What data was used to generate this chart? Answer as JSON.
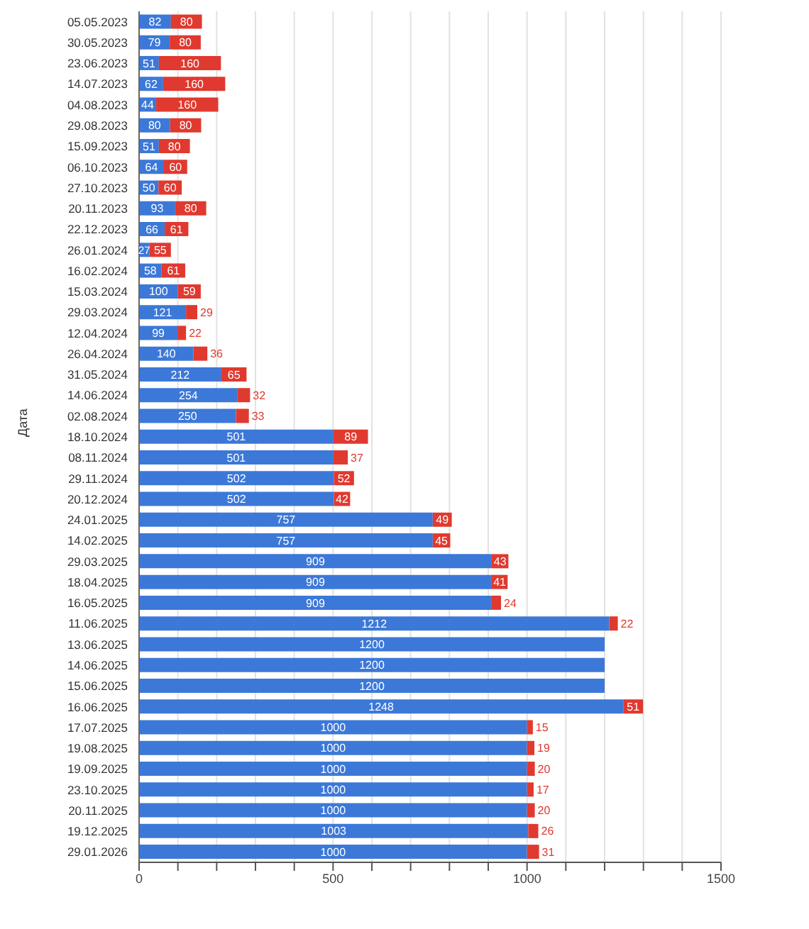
{
  "chart_data": {
    "type": "bar",
    "orientation": "horizontal",
    "stacked": true,
    "ylabel": "Дата",
    "data_labels": true,
    "grid": "x",
    "categories": [
      "05.05.2023",
      "30.05.2023",
      "23.06.2023",
      "14.07.2023",
      "04.08.2023",
      "29.08.2023",
      "15.09.2023",
      "06.10.2023",
      "27.10.2023",
      "20.11.2023",
      "22.12.2023",
      "26.01.2024",
      "16.02.2024",
      "15.03.2024",
      "29.03.2024",
      "12.04.2024",
      "26.04.2024",
      "31.05.2024",
      "14.06.2024",
      "02.08.2024",
      "18.10.2024",
      "08.11.2024",
      "29.11.2024",
      "20.12.2024",
      "24.01.2025",
      "14.02.2025",
      "29.03.2025",
      "18.04.2025",
      "16.05.2025",
      "11.06.2025",
      "13.06.2025",
      "14.06.2025",
      "15.06.2025",
      "16.06.2025",
      "17.07.2025",
      "19.08.2025",
      "19.09.2025",
      "23.10.2025",
      "20.11.2025",
      "19.12.2025",
      "29.01.2026"
    ],
    "series": [
      {
        "color": "#3c78d8",
        "values": [
          82,
          79,
          51,
          62,
          44,
          80,
          51,
          64,
          50,
          93,
          66,
          27,
          58,
          100,
          121,
          99,
          140,
          212,
          254,
          250,
          501,
          501,
          502,
          502,
          757,
          757,
          909,
          909,
          909,
          1212,
          1200,
          1200,
          1200,
          1248,
          1000,
          1000,
          1000,
          1000,
          1000,
          1003,
          1000
        ]
      },
      {
        "color": "#e0392f",
        "values": [
          80,
          80,
          160,
          160,
          160,
          80,
          80,
          60,
          60,
          80,
          61,
          55,
          61,
          59,
          29,
          22,
          36,
          65,
          32,
          33,
          89,
          37,
          52,
          42,
          49,
          45,
          43,
          41,
          24,
          22,
          null,
          null,
          null,
          51,
          15,
          19,
          20,
          17,
          20,
          26,
          31
        ]
      }
    ],
    "xlim": [
      0,
      1500
    ],
    "xticks": [
      0,
      {
        "value": 100,
        "label": null
      },
      {
        "value": 200,
        "label": null
      },
      {
        "value": 300,
        "label": null
      },
      {
        "value": 400,
        "label": null
      },
      500,
      {
        "value": 600,
        "label": null
      },
      {
        "value": 700,
        "label": null
      },
      {
        "value": 800,
        "label": null
      },
      {
        "value": 900,
        "label": null
      },
      1000,
      {
        "value": 1100,
        "label": null
      },
      {
        "value": 1200,
        "label": null
      },
      {
        "value": 1300,
        "label": null
      },
      {
        "value": 1400,
        "label": null
      },
      1500
    ]
  }
}
